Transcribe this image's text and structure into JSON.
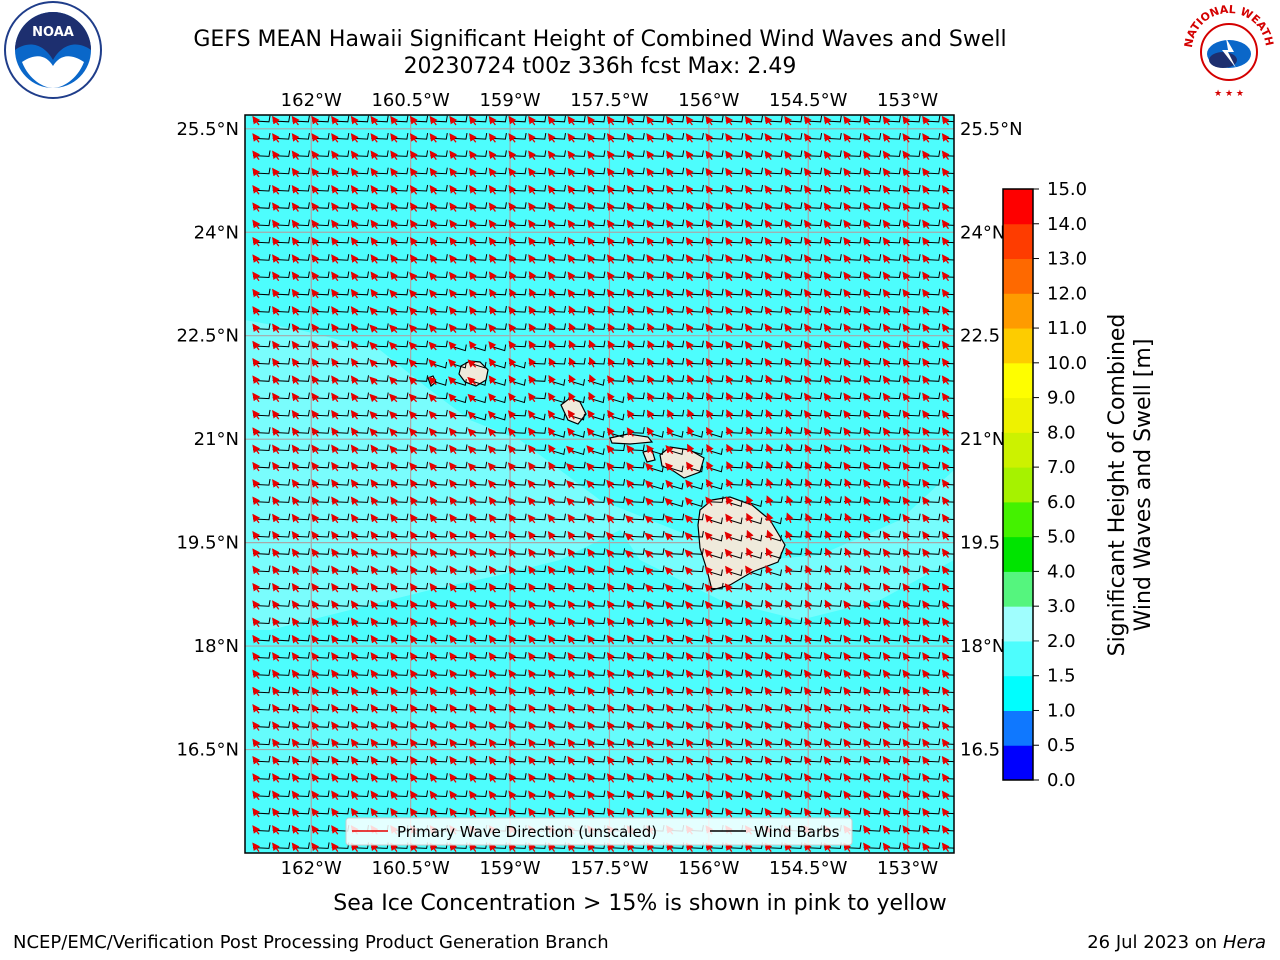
{
  "title": {
    "line1": "GEFS MEAN Hawaii Significant Height of Combined Wind Waves and Swell",
    "line2": "20230724 t00z 336h fcst   Max: 2.49"
  },
  "logos": {
    "noaa_text": "NOAA",
    "nws_text": "NATIONAL WEATHER SERVICE"
  },
  "map": {
    "lon_ticks": [
      "162°W",
      "160.5°W",
      "159°W",
      "157.5°W",
      "156°W",
      "154.5°W",
      "153°W"
    ],
    "lat_ticks": [
      "25.5°N",
      "24°N",
      "22.5°N",
      "21°N",
      "19.5°N",
      "18°N",
      "16.5°N"
    ],
    "lat_ticks_right": [
      "25.5°N",
      "24°N",
      "22.5",
      "21°N",
      "19.5",
      "18°N",
      "16.5"
    ],
    "lon_range": [
      -163.0,
      -152.3
    ],
    "lat_range": [
      15.0,
      25.7
    ],
    "lon_values": [
      -162,
      -160.5,
      -159,
      -157.5,
      -156,
      -154.5,
      -153
    ],
    "lat_values": [
      25.5,
      24,
      22.5,
      21,
      19.5,
      18,
      16.5
    ],
    "ocean_color": "#4dfdfd",
    "ocean_light_color": "#9ffdfd",
    "land_color": "#efeadb",
    "wave_arrow_color": "#e60000",
    "barb_color": "#000000"
  },
  "legend": {
    "wave_direction": "Primary Wave Direction (unscaled)",
    "wind_barbs": "Wind Barbs"
  },
  "colorbar": {
    "label_line1": "Significant Height of Combined",
    "label_line2": "Wind Waves and Swell [m]",
    "ticks": [
      "0.0",
      "0.5",
      "1.0",
      "1.5",
      "2.0",
      "3.0",
      "4.0",
      "5.0",
      "6.0",
      "7.0",
      "8.0",
      "9.0",
      "10.0",
      "11.0",
      "12.0",
      "13.0",
      "14.0",
      "15.0"
    ],
    "colors": [
      "#0000fe",
      "#0f78ff",
      "#00fefe",
      "#4dfdfd",
      "#a0fefe",
      "#55f57e",
      "#00e400",
      "#44f200",
      "#a6f200",
      "#ccf200",
      "#eef200",
      "#fefe00",
      "#fdcc00",
      "#fe9b00",
      "#fe6900",
      "#fe3c00",
      "#fe0000"
    ]
  },
  "ice_note": "Sea Ice Concentration > 15% is shown in pink to yellow",
  "footer": {
    "left": "NCEP/EMC/Verification Post Processing Product Generation Branch",
    "right_date": "26 Jul 2023 on ",
    "right_host": "Hera"
  }
}
